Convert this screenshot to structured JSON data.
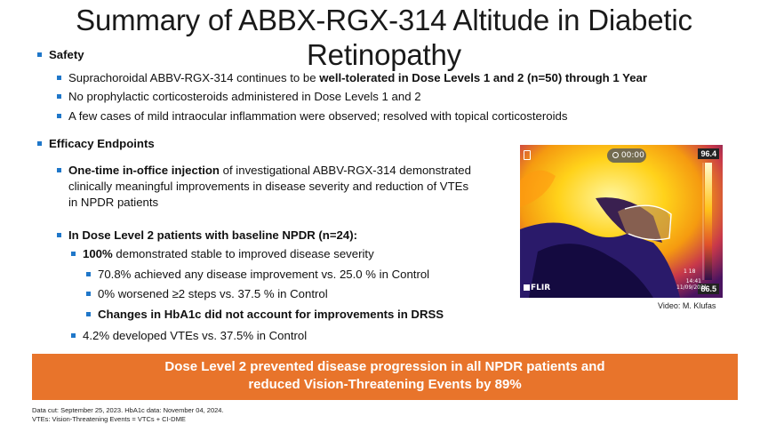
{
  "title_line1": "Summary of ABBX-RGX-314  Altitude in Diabetic",
  "title_line2": "Retinopathy",
  "safety": {
    "heading": "Safety",
    "item1_pre": "Suprachoroidal ABBV-RGX-314 continues to be ",
    "item1_bold": "well-tolerated in Dose Levels 1 and 2 (n=50) through 1 Year",
    "item2": "No prophylactic corticosteroids administered in Dose Levels 1 and 2",
    "item3": "A few cases of mild intraocular inflammation were observed; resolved with topical corticosteroids"
  },
  "efficacy": {
    "heading": "Efficacy Endpoints",
    "injection_bold": "One-time in-office injection",
    "injection_line1_rest": " of investigational ABBV-RGX-314 demonstrated",
    "injection_line2": "clinically meaningful improvements in disease severity and reduction of VTEs",
    "injection_line3": "in NPDR patients",
    "dose2_heading": "In Dose Level 2 patients with baseline NPDR (n=24):",
    "stable_bold": "100%",
    "stable_rest": " demonstrated stable to improved disease severity",
    "sub1": "70.8% achieved any disease improvement vs. 25.0 % in Control",
    "sub2": "0% worsened ≥2 steps vs. 37.5 % in Control",
    "sub3": "Changes in HbA1c did not account for improvements in DRSS",
    "vte": "4.2% developed VTEs vs. 37.5% in Control"
  },
  "thermal_image": {
    "timer": "00:00",
    "temp_max": "96.4",
    "temp_min": "86.5",
    "time": "14:41",
    "date": "11/09/2021",
    "brand": "FLIR",
    "counter": "1",
    "counter_suffix": "18"
  },
  "video_credit": "Video: M. Klufas",
  "banner_line1": "Dose Level 2 prevented disease progression in all NPDR patients and",
  "banner_line2": "reduced Vision-Threatening Events by 89%",
  "footnote1": "Data cut: September 25, 2023. HbA1c data: November 04, 2024.",
  "footnote2": "VTEs: Vision-Threatening Events = VTCs + CI-DME",
  "colors": {
    "bullet": "#1f77c9",
    "banner": "#e8742b"
  }
}
